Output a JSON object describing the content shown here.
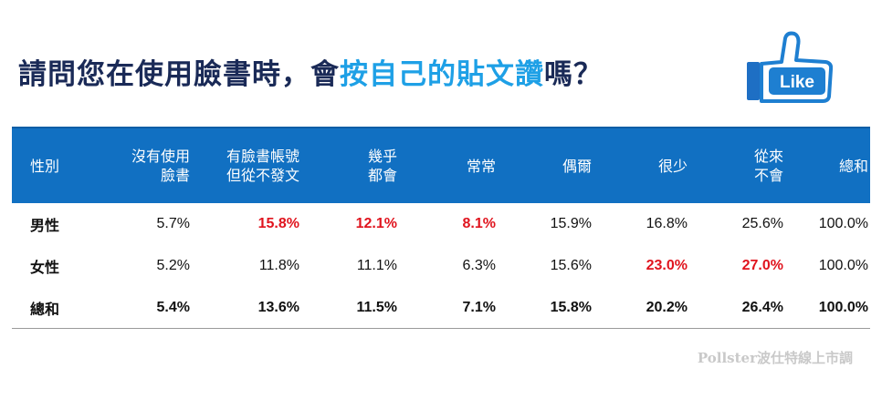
{
  "title": {
    "parts": [
      {
        "text": "請問您在使用臉書時，會",
        "color": "#1a2a57"
      },
      {
        "text": "按自己的貼文讚",
        "color": "#1ea0e6"
      },
      {
        "text": "嗎？",
        "color": "#1a2a57"
      }
    ]
  },
  "like_icon": {
    "label": "Like",
    "name": "thumbs-up-like-icon",
    "color": "#1e7fd1"
  },
  "table": {
    "headers": [
      "性別",
      "沒有使用\n臉書",
      "有臉書帳號\n但從不發文",
      "幾乎\n都會",
      "常常",
      "偶爾",
      "很少",
      "從來\n不會",
      "總和"
    ],
    "rows": [
      {
        "label": "男性",
        "values": [
          "5.7%",
          "15.8%",
          "12.1%",
          "8.1%",
          "15.9%",
          "16.8%",
          "25.6%",
          "100.0%"
        ]
      },
      {
        "label": "女性",
        "values": [
          "5.2%",
          "11.8%",
          "11.1%",
          "6.3%",
          "15.6%",
          "23.0%",
          "27.0%",
          "100.0%"
        ]
      },
      {
        "label": "總和",
        "values": [
          "5.4%",
          "13.6%",
          "11.5%",
          "7.1%",
          "15.8%",
          "20.2%",
          "26.4%",
          "100.0%"
        ]
      }
    ],
    "highlight_color": "#e0141e",
    "header_bg": "#1170c2"
  },
  "footer": {
    "text": "Pollster波仕特線上市調"
  }
}
